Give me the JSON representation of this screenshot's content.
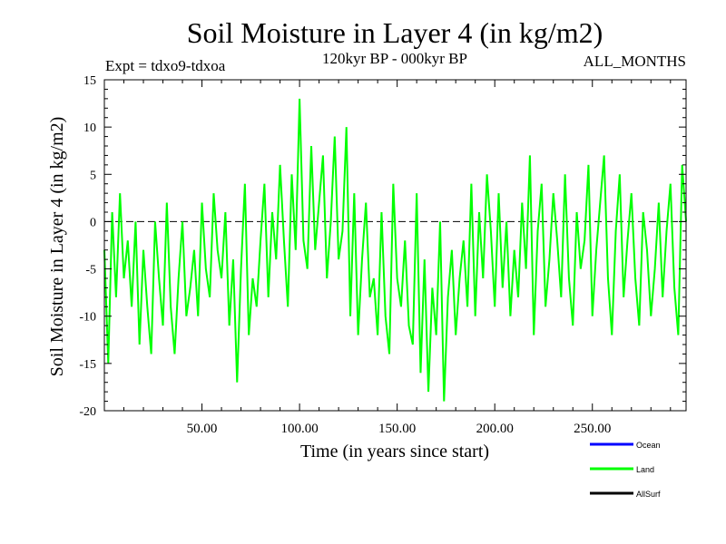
{
  "chart_data": {
    "type": "line",
    "title": "Soil Moisture in Layer 4 (in kg/m2)",
    "subtitle_left": "Expt = tdxo9-tdxoa",
    "subtitle_center": "120kyr BP - 000kyr BP",
    "subtitle_right": "ALL_MONTHS",
    "xlabel": "Time (in years since start)",
    "ylabel": "Soil Moisture in Layer 4 (in kg/m2)",
    "xlim": [
      0,
      298
    ],
    "ylim": [
      -20,
      15
    ],
    "xticks": [
      50,
      100,
      150,
      200,
      250
    ],
    "xtick_labels": [
      "50.00",
      "100.00",
      "150.00",
      "200.00",
      "250.00"
    ],
    "yticks": [
      -20,
      -15,
      -10,
      -5,
      0,
      5,
      10,
      15
    ],
    "ytick_labels": [
      "-20",
      "-15",
      "-10",
      "-5",
      "0",
      "5",
      "10",
      "15"
    ],
    "zero_line": "dashed",
    "legend_position": "bottom-right",
    "colors": {
      "Ocean": "#0000ff",
      "Land": "#00ff00",
      "AllSurf": "#000000",
      "axes": "#000000"
    },
    "series": [
      {
        "name": "Ocean",
        "x": [],
        "values": []
      },
      {
        "name": "Land",
        "x": [
          0,
          2,
          4,
          6,
          8,
          10,
          12,
          14,
          16,
          18,
          20,
          22,
          24,
          26,
          28,
          30,
          32,
          34,
          36,
          38,
          40,
          42,
          44,
          46,
          48,
          50,
          52,
          54,
          56,
          58,
          60,
          62,
          64,
          66,
          68,
          70,
          72,
          74,
          76,
          78,
          80,
          82,
          84,
          86,
          88,
          90,
          92,
          94,
          96,
          98,
          100,
          102,
          104,
          106,
          108,
          110,
          112,
          114,
          116,
          118,
          120,
          122,
          124,
          126,
          128,
          130,
          132,
          134,
          136,
          138,
          140,
          142,
          144,
          146,
          148,
          150,
          152,
          154,
          156,
          158,
          160,
          162,
          164,
          166,
          168,
          170,
          172,
          174,
          176,
          178,
          180,
          182,
          184,
          186,
          188,
          190,
          192,
          194,
          196,
          198,
          200,
          202,
          204,
          206,
          208,
          210,
          212,
          214,
          216,
          218,
          220,
          222,
          224,
          226,
          228,
          230,
          232,
          234,
          236,
          238,
          240,
          242,
          244,
          246,
          248,
          250,
          252,
          254,
          256,
          258,
          260,
          262,
          264,
          266,
          268,
          270,
          272,
          274,
          276,
          278,
          280,
          282,
          284,
          286,
          288,
          290,
          292,
          294,
          296,
          298
        ],
        "values": [
          -3,
          -15,
          1,
          -8,
          3,
          -6,
          -2,
          -9,
          0,
          -13,
          -3,
          -9,
          -14,
          0,
          -6,
          -11,
          2,
          -9,
          -14,
          -6,
          0,
          -10,
          -7,
          -3,
          -10,
          2,
          -5,
          -8,
          3,
          -3,
          -6,
          1,
          -11,
          -4,
          -17,
          -5,
          4,
          -12,
          -6,
          -9,
          -2,
          4,
          -8,
          1,
          -4,
          6,
          -2,
          -9,
          5,
          -3,
          13,
          -2,
          -5,
          8,
          -3,
          2,
          7,
          -6,
          0,
          9,
          -4,
          -1,
          10,
          -10,
          3,
          -12,
          -4,
          2,
          -8,
          -6,
          -12,
          1,
          -10,
          -14,
          4,
          -6,
          -9,
          -2,
          -11,
          -13,
          3,
          -16,
          -4,
          -18,
          -7,
          -12,
          0,
          -19,
          -8,
          -3,
          -12,
          -6,
          -2,
          -9,
          4,
          -10,
          1,
          -6,
          5,
          -1,
          -9,
          3,
          -7,
          0,
          -10,
          -3,
          -8,
          2,
          -5,
          7,
          -12,
          -1,
          4,
          -9,
          -4,
          3,
          -2,
          -8,
          5,
          -6,
          -11,
          1,
          -5,
          -2,
          6,
          -10,
          -3,
          2,
          7,
          -6,
          -12,
          -1,
          5,
          -8,
          -2,
          3,
          -6,
          -11,
          1,
          -3,
          -10,
          -5,
          2,
          -8,
          -1,
          4,
          -7,
          -12,
          6,
          0
        ]
      },
      {
        "name": "AllSurf",
        "x": [],
        "values": []
      }
    ]
  }
}
